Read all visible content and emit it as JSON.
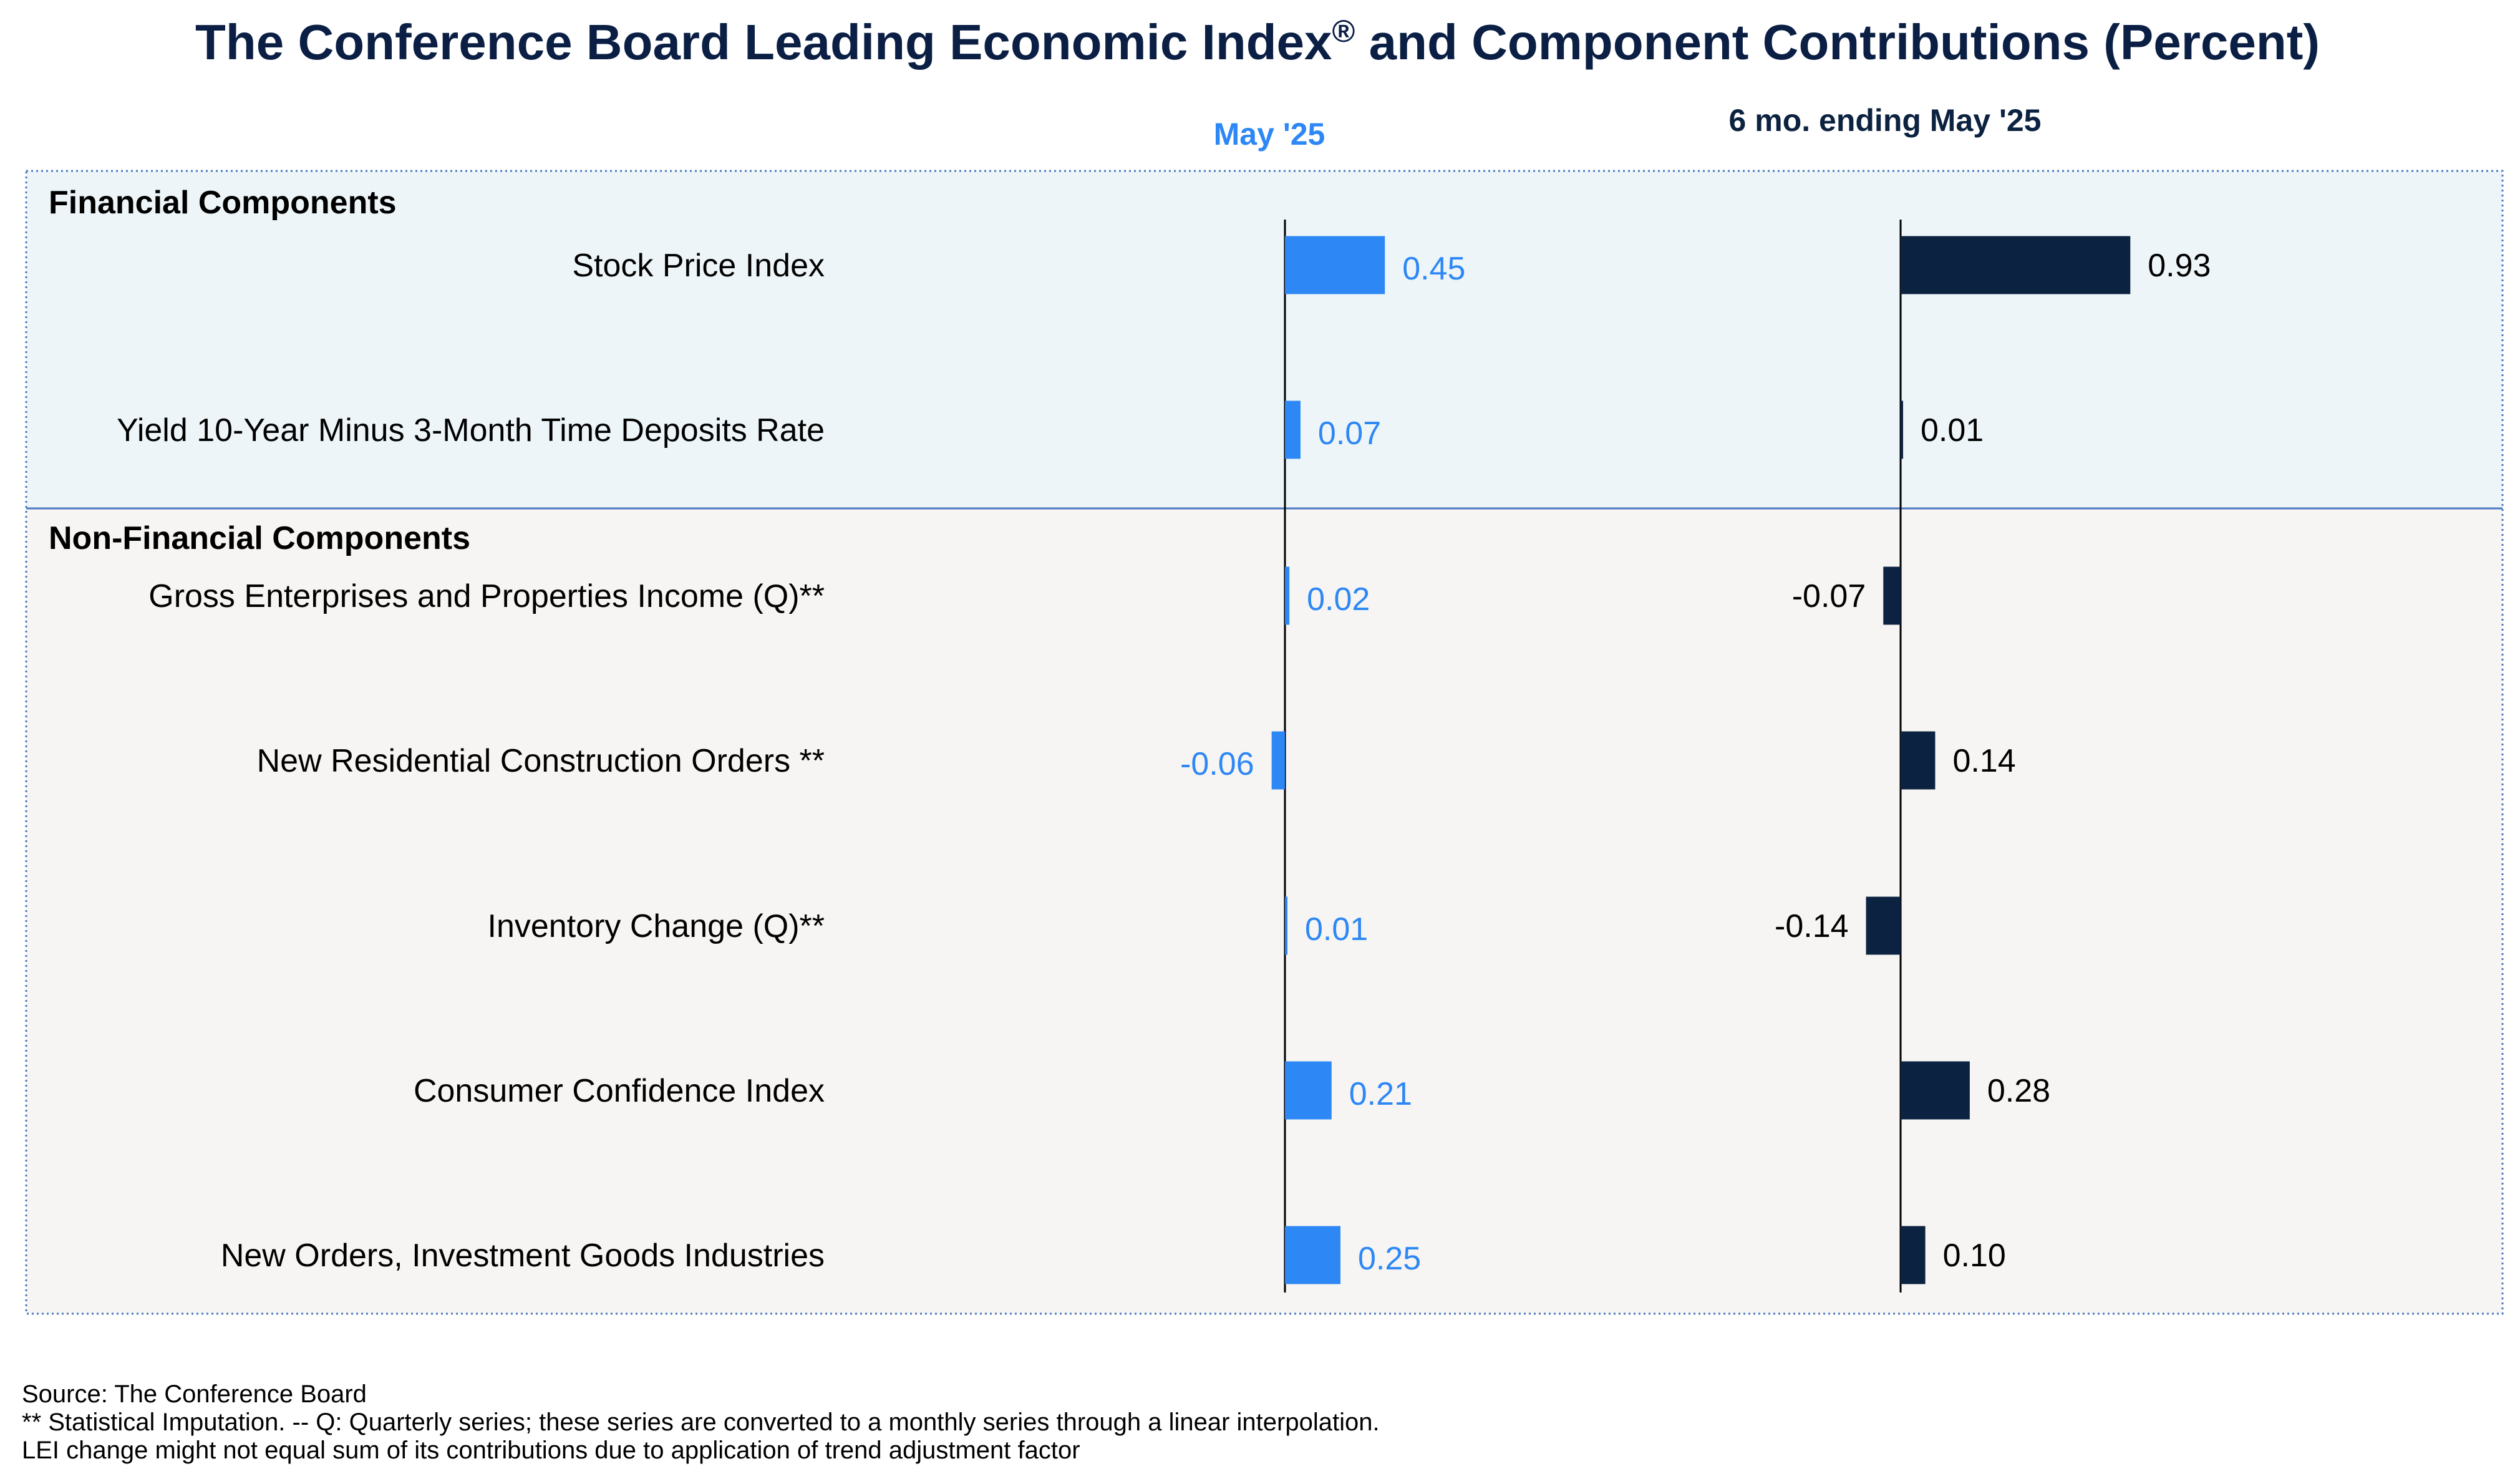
{
  "chart_data": {
    "type": "bar",
    "title": "The Conference Board Leading Economic Index",
    "title_mark": "®",
    "title_suffix": " and Component Contributions (Percent)",
    "columns": [
      {
        "header": "May '25",
        "color": "#2d87f5"
      },
      {
        "header": "6 mo. ending May '25",
        "color": "#0b2240"
      }
    ],
    "sections": [
      {
        "title": "Financial Components",
        "background": "#edf5f8",
        "rows": [
          {
            "label": "Stock Price Index",
            "may": 0.45,
            "six_mo": 0.93,
            "may_label": "0.45",
            "six_label": "0.93"
          },
          {
            "label": "Yield 10-Year Minus 3-Month Time Deposits Rate",
            "may": 0.07,
            "six_mo": 0.01,
            "may_label": "0.07",
            "six_label": "0.01"
          }
        ]
      },
      {
        "title": "Non-Financial Components",
        "background": "#f6f5f3",
        "rows": [
          {
            "label": "Gross Enterprises and Properties Income (Q)**",
            "may": 0.02,
            "six_mo": -0.07,
            "may_label": "0.02",
            "six_label": "-0.07"
          },
          {
            "label": "New Residential Construction Orders **",
            "may": -0.06,
            "six_mo": 0.14,
            "may_label": "-0.06",
            "six_label": "0.14"
          },
          {
            "label": "Inventory Change (Q)**",
            "may": 0.01,
            "six_mo": -0.14,
            "may_label": "0.01",
            "six_label": "-0.14"
          },
          {
            "label": "Consumer Confidence Index",
            "may": 0.21,
            "six_mo": 0.28,
            "may_label": "0.21",
            "six_label": "0.28"
          },
          {
            "label": "New Orders, Investment Goods Industries",
            "may": 0.25,
            "six_mo": 0.1,
            "may_label": "0.25",
            "six_label": "0.10"
          }
        ]
      }
    ],
    "grid": false,
    "legend": "none"
  },
  "footnotes": [
    "Source: The Conference Board",
    "**  Statistical Imputation. -- Q: Quarterly series; these series are converted to a monthly series through a linear interpolation.",
    "LEI change might not equal sum of its contributions due to application of trend adjustment factor"
  ],
  "colors": {
    "title": "#0b1f45",
    "section_border": "#4a78c2"
  }
}
